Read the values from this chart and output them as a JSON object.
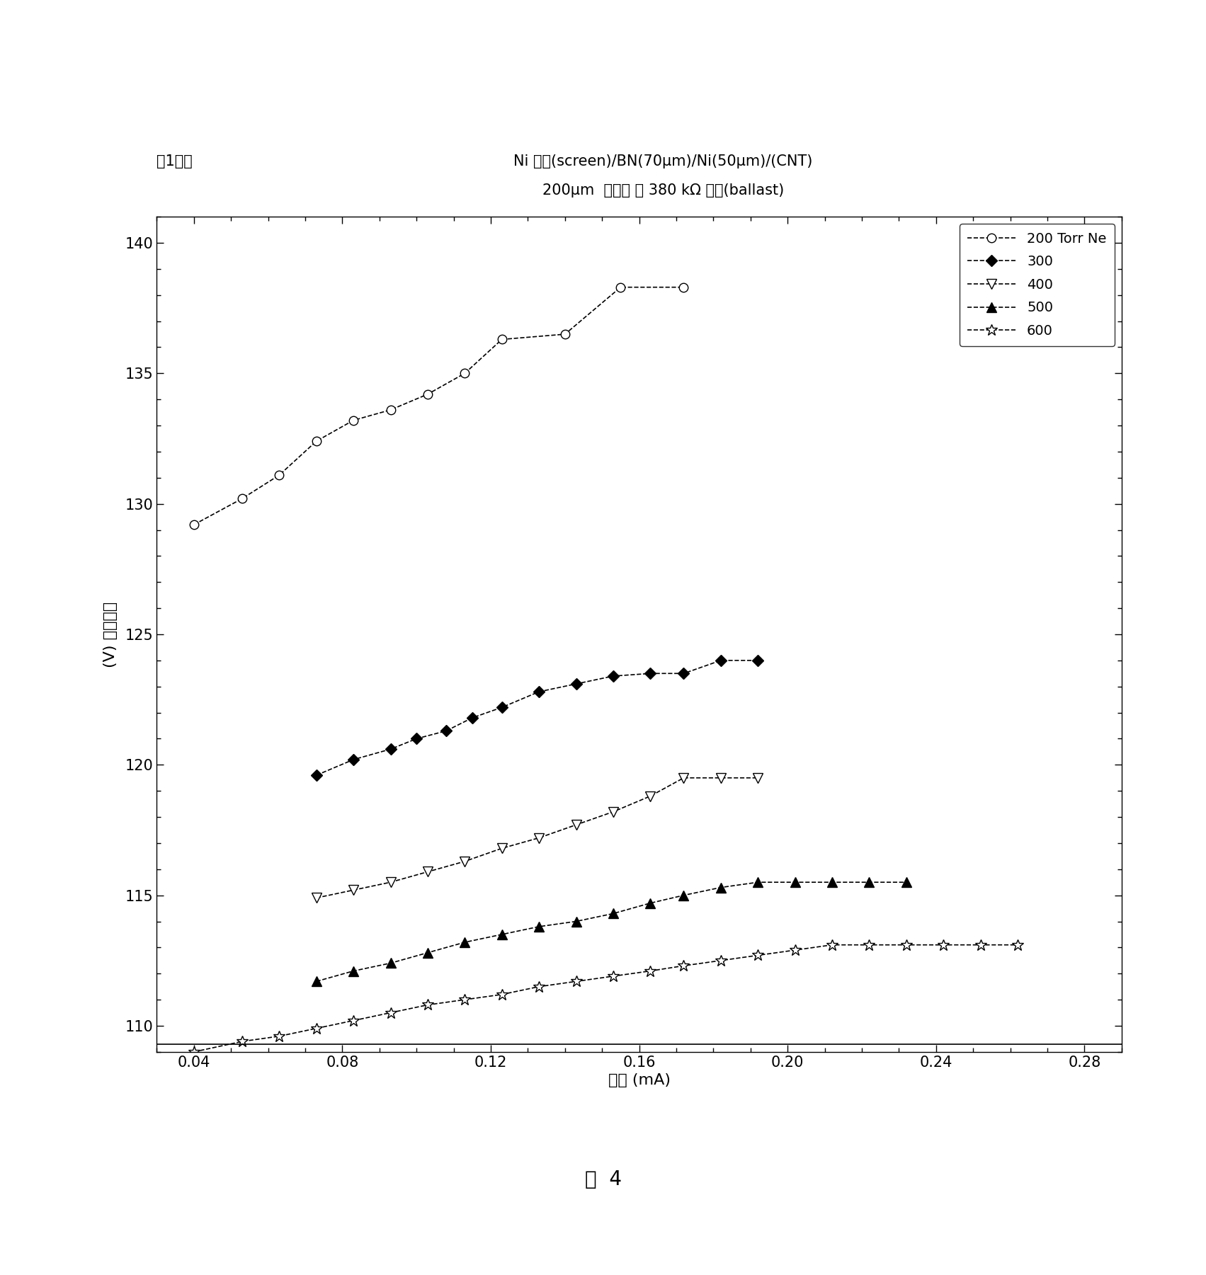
{
  "title_line1": "Ni 丝网(screen)/BN(70μm)/Ni(50μm)/(CNT)",
  "title_line2": "200μm  孔直径 ， 380 kΩ 压载(ballast)",
  "top_left_label": "图1器件",
  "xlabel": "电流 (mA)",
  "ylabel": "(V) 放电电压",
  "bottom_label": "图  4",
  "xlim": [
    0.03,
    0.29
  ],
  "ylim": [
    109,
    141
  ],
  "yticks": [
    110,
    115,
    120,
    125,
    130,
    135,
    140
  ],
  "xticks": [
    0.04,
    0.08,
    0.12,
    0.16,
    0.2,
    0.24,
    0.28
  ],
  "hline_y": 109.3,
  "series": [
    {
      "label": "200 Torr Ne",
      "x": [
        0.04,
        0.053,
        0.063,
        0.073,
        0.083,
        0.093,
        0.103,
        0.113,
        0.123,
        0.14,
        0.155,
        0.172
      ],
      "y": [
        129.2,
        130.2,
        131.1,
        132.4,
        133.2,
        133.6,
        134.2,
        135.0,
        136.3,
        136.5,
        138.3,
        138.3
      ],
      "marker": "o",
      "mfc": "white",
      "mec": "black",
      "ms": 9
    },
    {
      "label": "300",
      "x": [
        0.073,
        0.083,
        0.093,
        0.1,
        0.108,
        0.115,
        0.123,
        0.133,
        0.143,
        0.153,
        0.163,
        0.172,
        0.182,
        0.192
      ],
      "y": [
        119.6,
        120.2,
        120.6,
        121.0,
        121.3,
        121.8,
        122.2,
        122.8,
        123.1,
        123.4,
        123.5,
        123.5,
        124.0,
        124.0
      ],
      "marker": "D",
      "mfc": "black",
      "mec": "black",
      "ms": 8
    },
    {
      "label": "400",
      "x": [
        0.073,
        0.083,
        0.093,
        0.103,
        0.113,
        0.123,
        0.133,
        0.143,
        0.153,
        0.163,
        0.172,
        0.182,
        0.192
      ],
      "y": [
        114.9,
        115.2,
        115.5,
        115.9,
        116.3,
        116.8,
        117.2,
        117.7,
        118.2,
        118.8,
        119.5,
        119.5,
        119.5
      ],
      "marker": "v",
      "mfc": "white",
      "mec": "black",
      "ms": 10
    },
    {
      "label": "500",
      "x": [
        0.073,
        0.083,
        0.093,
        0.103,
        0.113,
        0.123,
        0.133,
        0.143,
        0.153,
        0.163,
        0.172,
        0.182,
        0.192,
        0.202,
        0.212,
        0.222,
        0.232
      ],
      "y": [
        111.7,
        112.1,
        112.4,
        112.8,
        113.2,
        113.5,
        113.8,
        114.0,
        114.3,
        114.7,
        115.0,
        115.3,
        115.5,
        115.5,
        115.5,
        115.5,
        115.5
      ],
      "marker": "^",
      "mfc": "black",
      "mec": "black",
      "ms": 10
    },
    {
      "label": "600",
      "x": [
        0.04,
        0.053,
        0.063,
        0.073,
        0.083,
        0.093,
        0.103,
        0.113,
        0.123,
        0.133,
        0.143,
        0.153,
        0.163,
        0.172,
        0.182,
        0.192,
        0.202,
        0.212,
        0.222,
        0.232,
        0.242,
        0.252,
        0.262
      ],
      "y": [
        109.0,
        109.4,
        109.6,
        109.9,
        110.2,
        110.5,
        110.8,
        111.0,
        111.2,
        111.5,
        111.7,
        111.9,
        112.1,
        112.3,
        112.5,
        112.7,
        112.9,
        113.1,
        113.1,
        113.1,
        113.1,
        113.1,
        113.1
      ],
      "marker": "*",
      "mfc": "white",
      "mec": "black",
      "ms": 12
    }
  ]
}
